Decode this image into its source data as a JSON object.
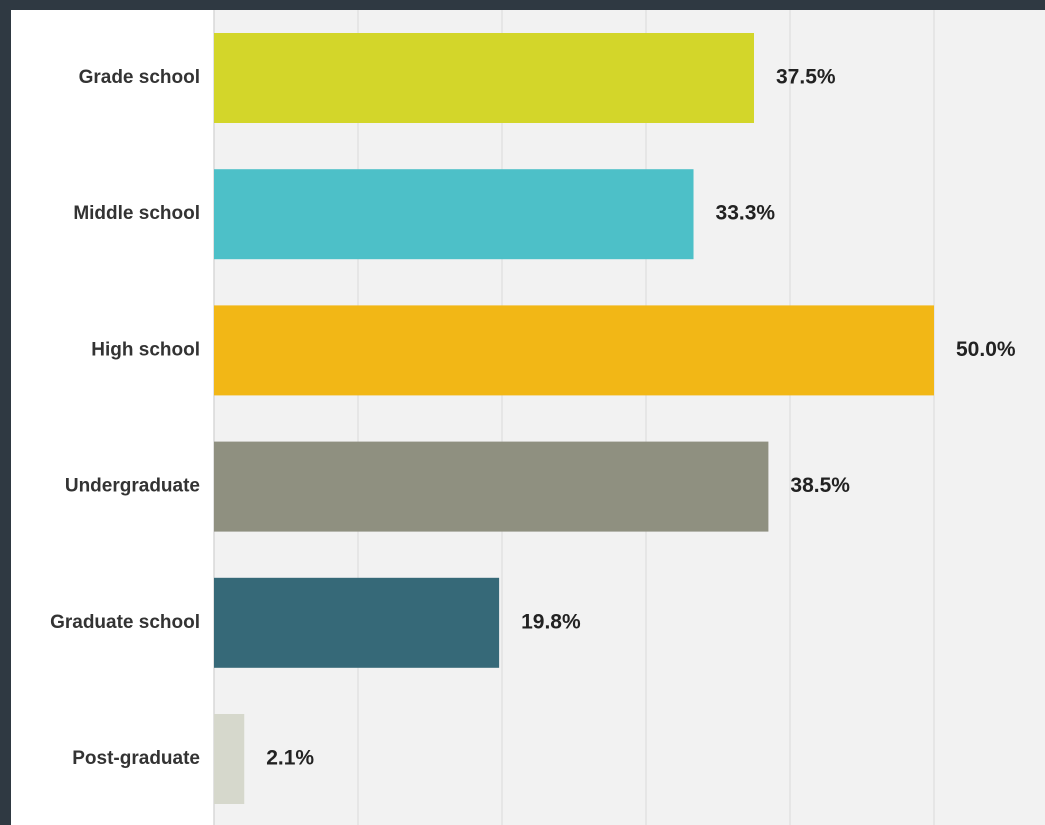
{
  "chart_data": {
    "type": "bar",
    "orientation": "horizontal",
    "categories": [
      "Grade school",
      "Middle school",
      "High school",
      "Undergraduate",
      "Graduate school",
      "Post-graduate"
    ],
    "values": [
      37.5,
      33.3,
      50.0,
      38.5,
      19.8,
      2.1
    ],
    "value_labels": [
      "37.5%",
      "33.3%",
      "50.0%",
      "38.5%",
      "19.8%",
      "2.1%"
    ],
    "colors": [
      "#d3d62a",
      "#4dc0c8",
      "#f2b716",
      "#8f9080",
      "#366978",
      "#d6d8cc"
    ],
    "title": "",
    "xlabel": "",
    "ylabel": "",
    "xlim": [
      0,
      50
    ],
    "grid": true,
    "legend": "none",
    "plot_background": "#f2f2f2",
    "gridline_color": "#e2e2e2"
  }
}
